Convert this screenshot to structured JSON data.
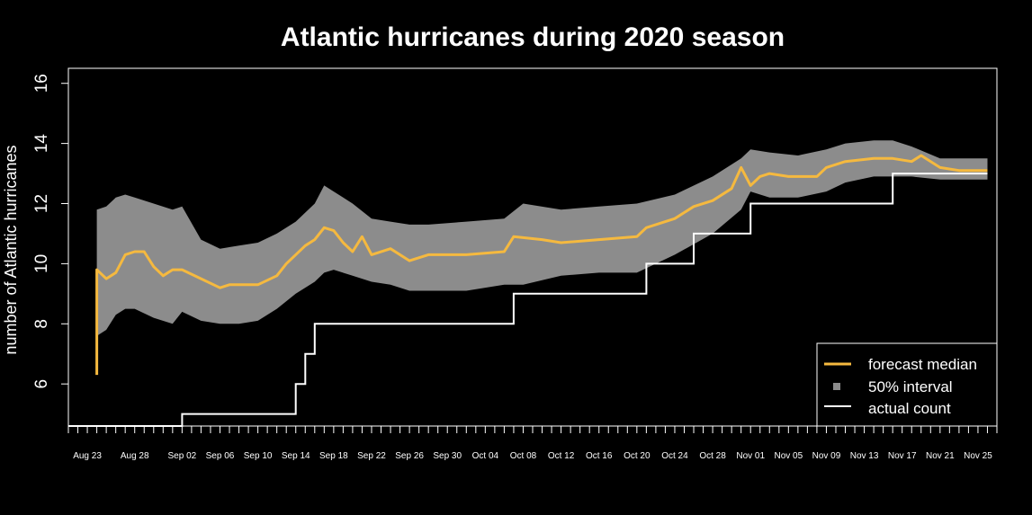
{
  "chart_data": {
    "type": "line",
    "title": "Atlantic hurricanes during 2020 season",
    "xlabel": "",
    "ylabel": "number of Atlantic hurricanes",
    "x_start": "2020-08-21",
    "x_end": "2020-11-27",
    "ylim": [
      4.6,
      16.5
    ],
    "yticks": [
      6,
      8,
      10,
      12,
      14,
      16
    ],
    "xticks": [
      "2020-08-23",
      "2020-08-28",
      "2020-09-02",
      "2020-09-06",
      "2020-09-10",
      "2020-09-14",
      "2020-09-18",
      "2020-09-22",
      "2020-09-26",
      "2020-09-30",
      "2020-10-04",
      "2020-10-08",
      "2020-10-12",
      "2020-10-16",
      "2020-10-20",
      "2020-10-24",
      "2020-10-28",
      "2020-11-01",
      "2020-11-05",
      "2020-11-09",
      "2020-11-13",
      "2020-11-17",
      "2020-11-21",
      "2020-11-25"
    ],
    "xtick_labels": [
      "Aug 23",
      "Aug 28",
      "Sep 02",
      "Sep 06",
      "Sep 10",
      "Sep 14",
      "Sep 18",
      "Sep 22",
      "Sep 26",
      "Sep 30",
      "Oct 04",
      "Oct 08",
      "Oct 12",
      "Oct 16",
      "Oct 20",
      "Oct 24",
      "Oct 28",
      "Nov 01",
      "Nov 05",
      "Nov 09",
      "Nov 13",
      "Nov 17",
      "Nov 21",
      "Nov 25"
    ],
    "legend_position": "bottom-right",
    "colors": {
      "median": "#F5B93F",
      "interval": "#8C8C8C",
      "actual": "#FFFFFF"
    },
    "series": [
      {
        "name": "forecast median",
        "type": "line",
        "x": [
          "2020-08-24",
          "2020-08-24",
          "2020-08-25",
          "2020-08-26",
          "2020-08-27",
          "2020-08-28",
          "2020-08-29",
          "2020-08-30",
          "2020-08-31",
          "2020-09-01",
          "2020-09-02",
          "2020-09-04",
          "2020-09-06",
          "2020-09-07",
          "2020-09-08",
          "2020-09-10",
          "2020-09-12",
          "2020-09-13",
          "2020-09-14",
          "2020-09-15",
          "2020-09-16",
          "2020-09-17",
          "2020-09-18",
          "2020-09-19",
          "2020-09-20",
          "2020-09-21",
          "2020-09-22",
          "2020-09-24",
          "2020-09-26",
          "2020-09-28",
          "2020-10-02",
          "2020-10-06",
          "2020-10-07",
          "2020-10-10",
          "2020-10-12",
          "2020-10-16",
          "2020-10-20",
          "2020-10-21",
          "2020-10-24",
          "2020-10-26",
          "2020-10-28",
          "2020-10-30",
          "2020-10-31",
          "2020-11-01",
          "2020-11-02",
          "2020-11-03",
          "2020-11-05",
          "2020-11-08",
          "2020-11-09",
          "2020-11-11",
          "2020-11-14",
          "2020-11-16",
          "2020-11-18",
          "2020-11-19",
          "2020-11-21",
          "2020-11-23",
          "2020-11-26"
        ],
        "y": [
          6.3,
          9.8,
          9.5,
          9.7,
          10.3,
          10.4,
          10.4,
          9.9,
          9.6,
          9.8,
          9.8,
          9.5,
          9.2,
          9.3,
          9.3,
          9.3,
          9.6,
          10.0,
          10.3,
          10.6,
          10.8,
          11.2,
          11.1,
          10.7,
          10.4,
          10.9,
          10.3,
          10.5,
          10.1,
          10.3,
          10.3,
          10.4,
          10.9,
          10.8,
          10.7,
          10.8,
          10.9,
          11.2,
          11.5,
          11.9,
          12.1,
          12.5,
          13.2,
          12.6,
          12.9,
          13.0,
          12.9,
          12.9,
          13.2,
          13.4,
          13.5,
          13.5,
          13.4,
          13.6,
          13.2,
          13.1,
          13.1
        ]
      },
      {
        "name": "50% interval",
        "type": "band",
        "x": [
          "2020-08-24",
          "2020-08-25",
          "2020-08-26",
          "2020-08-27",
          "2020-08-28",
          "2020-08-30",
          "2020-09-01",
          "2020-09-02",
          "2020-09-04",
          "2020-09-06",
          "2020-09-08",
          "2020-09-10",
          "2020-09-12",
          "2020-09-14",
          "2020-09-16",
          "2020-09-17",
          "2020-09-18",
          "2020-09-20",
          "2020-09-22",
          "2020-09-24",
          "2020-09-26",
          "2020-09-28",
          "2020-10-02",
          "2020-10-06",
          "2020-10-08",
          "2020-10-12",
          "2020-10-16",
          "2020-10-20",
          "2020-10-24",
          "2020-10-28",
          "2020-10-31",
          "2020-11-01",
          "2020-11-03",
          "2020-11-06",
          "2020-11-09",
          "2020-11-11",
          "2020-11-14",
          "2020-11-16",
          "2020-11-18",
          "2020-11-21",
          "2020-11-26"
        ],
        "low": [
          7.6,
          7.8,
          8.3,
          8.5,
          8.5,
          8.2,
          8.0,
          8.4,
          8.1,
          8.0,
          8.0,
          8.1,
          8.5,
          9.0,
          9.4,
          9.7,
          9.8,
          9.6,
          9.4,
          9.3,
          9.1,
          9.1,
          9.1,
          9.3,
          9.3,
          9.6,
          9.7,
          9.7,
          10.3,
          11.0,
          11.8,
          12.4,
          12.2,
          12.2,
          12.4,
          12.7,
          12.9,
          12.9,
          12.9,
          12.8,
          12.8
        ],
        "high": [
          11.8,
          11.9,
          12.2,
          12.3,
          12.2,
          12.0,
          11.8,
          11.9,
          10.8,
          10.5,
          10.6,
          10.7,
          11.0,
          11.4,
          12.0,
          12.6,
          12.4,
          12.0,
          11.5,
          11.4,
          11.3,
          11.3,
          11.4,
          11.5,
          12.0,
          11.8,
          11.9,
          12.0,
          12.3,
          12.9,
          13.5,
          13.8,
          13.7,
          13.6,
          13.8,
          14.0,
          14.1,
          14.1,
          13.9,
          13.5,
          13.5
        ]
      },
      {
        "name": "actual count",
        "type": "step",
        "x": [
          "2020-08-21",
          "2020-09-02",
          "2020-09-13",
          "2020-09-14",
          "2020-09-15",
          "2020-09-16",
          "2020-10-05",
          "2020-10-07",
          "2020-10-20",
          "2020-10-21",
          "2020-10-25",
          "2020-10-26",
          "2020-10-31",
          "2020-11-01",
          "2020-11-15",
          "2020-11-16",
          "2020-11-26"
        ],
        "y": [
          4.6,
          5,
          5,
          6,
          7,
          8,
          8,
          9,
          9,
          10,
          10,
          11,
          11,
          12,
          12,
          13,
          13
        ]
      }
    ]
  }
}
